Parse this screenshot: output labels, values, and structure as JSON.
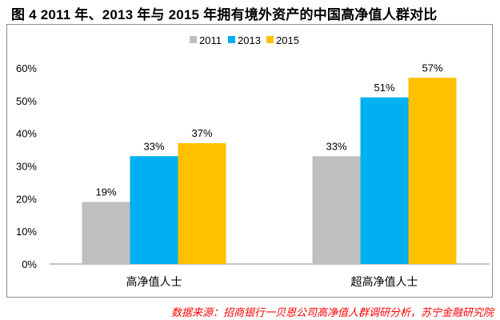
{
  "title": "图 4   2011 年、2013 年与 2015 年拥有境外资产的中国高净值人群对比",
  "source": "数据来源：招商银行一贝恩公司高净值人群调研分析，苏宁金融研究院",
  "chart_data": {
    "type": "bar",
    "categories": [
      "高净值人士",
      "超高净值人士"
    ],
    "series": [
      {
        "name": "2011",
        "values": [
          19,
          33
        ],
        "color": "#bfbfbf"
      },
      {
        "name": "2013",
        "values": [
          33,
          51
        ],
        "color": "#00b0f0"
      },
      {
        "name": "2015",
        "values": [
          37,
          57
        ],
        "color": "#ffc000"
      }
    ],
    "value_labels": [
      [
        "19%",
        "33%"
      ],
      [
        "33%",
        "51%"
      ],
      [
        "37%",
        "57%"
      ]
    ],
    "yticks": [
      "0%",
      "10%",
      "20%",
      "30%",
      "40%",
      "50%",
      "60%"
    ],
    "ylim": [
      0,
      60
    ],
    "legend_position": "top-center",
    "grid": false,
    "xlabel": "",
    "ylabel": ""
  }
}
